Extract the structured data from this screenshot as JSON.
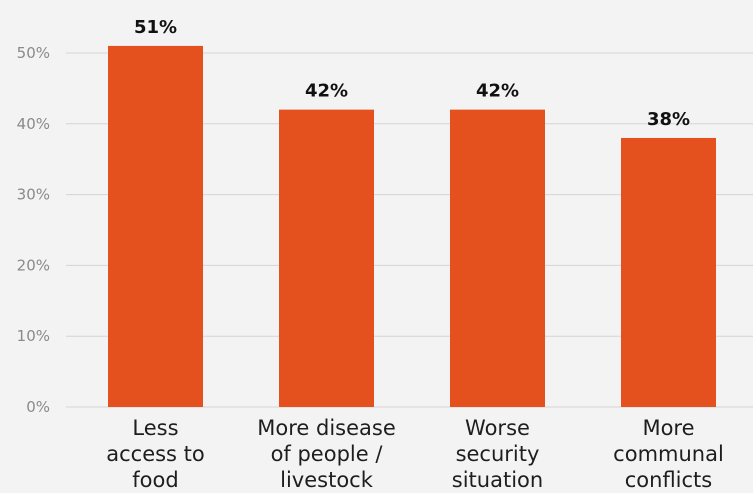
{
  "chart_data": {
    "type": "bar",
    "categories": [
      [
        "Less",
        "access to",
        "food"
      ],
      [
        "More disease",
        "of people /",
        "livestock"
      ],
      [
        "Worse",
        "security",
        "situation"
      ],
      [
        "More",
        "communal",
        "conflicts"
      ]
    ],
    "values": [
      51,
      42,
      42,
      38
    ],
    "value_labels": [
      "51%",
      "42%",
      "42%",
      "38%"
    ],
    "ylim": [
      0,
      50
    ],
    "yticks": [
      "0%",
      "10%",
      "20%",
      "30%",
      "40%",
      "50%"
    ],
    "title": "",
    "xlabel": "",
    "ylabel": "",
    "grid": true,
    "bar_color": "#e4501e",
    "background_color": "#f3f3f3"
  }
}
